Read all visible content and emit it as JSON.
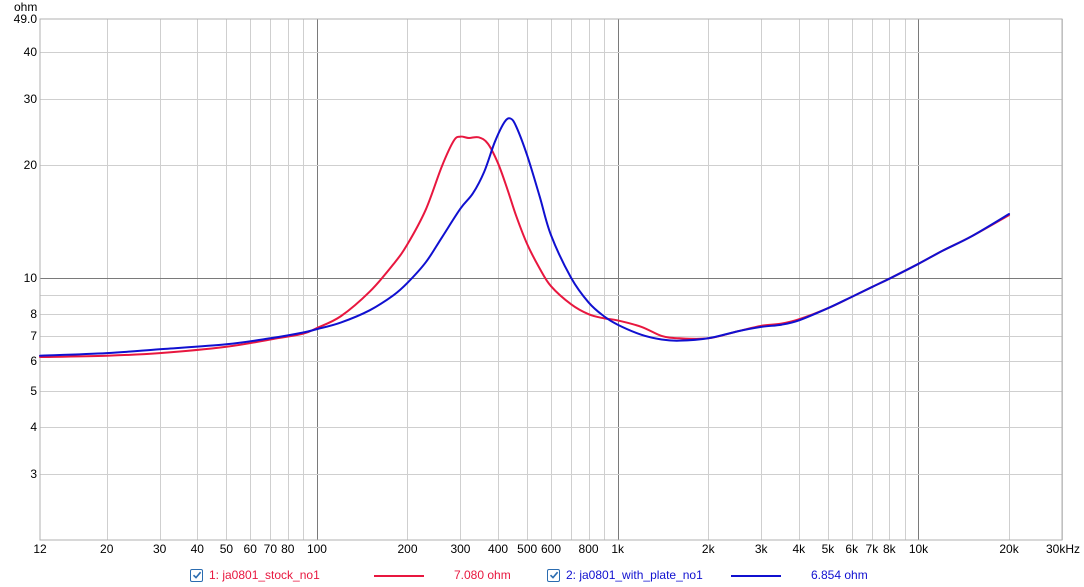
{
  "chart_data": {
    "type": "line",
    "title": "",
    "xlabel": "kHz",
    "ylabel": "ohm",
    "xscale": "log",
    "yscale": "log",
    "xlim": [
      12,
      30000
    ],
    "ylim": [
      2.0,
      49.0
    ],
    "grid": true,
    "x_ticks": [
      {
        "v": 12,
        "label": "12"
      },
      {
        "v": 20,
        "label": "20"
      },
      {
        "v": 30,
        "label": "30"
      },
      {
        "v": 40,
        "label": "40"
      },
      {
        "v": 50,
        "label": "50"
      },
      {
        "v": 60,
        "label": "60"
      },
      {
        "v": 70,
        "label": "70"
      },
      {
        "v": 80,
        "label": "80"
      },
      {
        "v": 100,
        "label": "100"
      },
      {
        "v": 200,
        "label": "200"
      },
      {
        "v": 300,
        "label": "300"
      },
      {
        "v": 400,
        "label": "400"
      },
      {
        "v": 500,
        "label": "500"
      },
      {
        "v": 600,
        "label": "600"
      },
      {
        "v": 800,
        "label": "800"
      },
      {
        "v": 1000,
        "label": "1k"
      },
      {
        "v": 2000,
        "label": "2k"
      },
      {
        "v": 3000,
        "label": "3k"
      },
      {
        "v": 4000,
        "label": "4k"
      },
      {
        "v": 5000,
        "label": "5k"
      },
      {
        "v": 6000,
        "label": "6k"
      },
      {
        "v": 7000,
        "label": "7k"
      },
      {
        "v": 8000,
        "label": "8k"
      },
      {
        "v": 10000,
        "label": "10k"
      },
      {
        "v": 20000,
        "label": "20k"
      },
      {
        "v": 30000,
        "label": "30kHz"
      }
    ],
    "y_ticks": [
      {
        "v": 3,
        "label": "3"
      },
      {
        "v": 4,
        "label": "4"
      },
      {
        "v": 5,
        "label": "5"
      },
      {
        "v": 6,
        "label": "6"
      },
      {
        "v": 7,
        "label": "7"
      },
      {
        "v": 8,
        "label": "8"
      },
      {
        "v": 10,
        "label": "10"
      },
      {
        "v": 20,
        "label": "20"
      },
      {
        "v": 30,
        "label": "30"
      },
      {
        "v": 40,
        "label": "40"
      },
      {
        "v": 49.0,
        "label": "49.0"
      }
    ],
    "series": [
      {
        "name": "1: ja0801_stock_no1",
        "color": "#e8173f",
        "x": [
          12,
          20,
          30,
          50,
          70,
          90,
          100,
          120,
          150,
          180,
          200,
          230,
          260,
          285,
          300,
          320,
          345,
          370,
          400,
          430,
          460,
          500,
          550,
          600,
          700,
          800,
          900,
          1000,
          1200,
          1400,
          1600,
          2000,
          2500,
          3000,
          3500,
          4000,
          5000,
          6000,
          7000,
          8000,
          10000,
          12000,
          15000,
          20000
        ],
        "values": [
          6.15,
          6.2,
          6.3,
          6.55,
          6.85,
          7.1,
          7.35,
          7.9,
          9.2,
          10.9,
          12.3,
          15.2,
          19.8,
          23.2,
          23.8,
          23.6,
          23.7,
          22.8,
          20.2,
          17.2,
          14.6,
          12.3,
          10.6,
          9.5,
          8.5,
          8.0,
          7.8,
          7.7,
          7.4,
          7.0,
          6.9,
          6.9,
          7.2,
          7.45,
          7.55,
          7.75,
          8.3,
          8.9,
          9.45,
          9.95,
          10.9,
          11.8,
          12.9,
          14.7
        ]
      },
      {
        "name": "2: ja0801_with_plate_no1",
        "color": "#1010d0",
        "x": [
          12,
          20,
          30,
          50,
          70,
          90,
          100,
          120,
          150,
          180,
          200,
          230,
          260,
          300,
          330,
          360,
          390,
          420,
          440,
          460,
          500,
          550,
          600,
          700,
          800,
          900,
          1000,
          1200,
          1400,
          1600,
          2000,
          2500,
          3000,
          3500,
          4000,
          5000,
          6000,
          7000,
          8000,
          10000,
          12000,
          15000,
          20000
        ],
        "values": [
          6.2,
          6.3,
          6.45,
          6.65,
          6.9,
          7.15,
          7.3,
          7.6,
          8.2,
          9.0,
          9.7,
          11.0,
          12.8,
          15.3,
          16.8,
          19.2,
          23.0,
          26.0,
          26.6,
          25.3,
          21.2,
          16.5,
          13.0,
          10.0,
          8.6,
          7.9,
          7.5,
          7.05,
          6.85,
          6.8,
          6.9,
          7.2,
          7.4,
          7.5,
          7.7,
          8.3,
          8.9,
          9.45,
          9.95,
          10.9,
          11.8,
          12.9,
          14.8
        ]
      }
    ],
    "legend_position": "bottom"
  },
  "legend": {
    "items": [
      {
        "label": "1: ja0801_stock_no1",
        "value": "7.080 ohm",
        "color": "#e8173f"
      },
      {
        "label": "2: ja0801_with_plate_no1",
        "value": "6.854 ohm",
        "color": "#1010d0"
      }
    ]
  }
}
